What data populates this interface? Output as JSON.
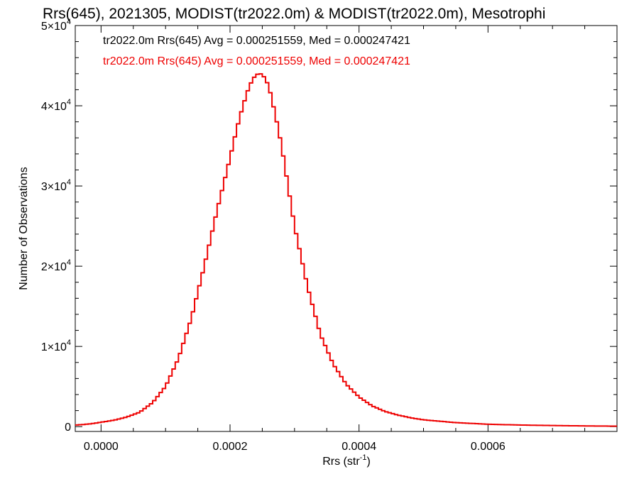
{
  "chart_data": {
    "type": "line",
    "style": "step-histogram",
    "title": "Rrs(645), 2021305, MODIST(tr2022.0m) & MODIST(tr2022.0m), Mesotrophi",
    "xlabel": "Rrs (str",
    "xlabel_sup": "-1",
    "xlabel_suffix": ")",
    "ylabel": "Number of Observations",
    "xlim": [
      -4e-05,
      0.0008
    ],
    "ylim": [
      -600,
      50000
    ],
    "x_ticks": [
      {
        "value": 0.0,
        "label": "0.0000"
      },
      {
        "value": 0.0002,
        "label": "0.0002"
      },
      {
        "value": 0.0004,
        "label": "0.0004"
      },
      {
        "value": 0.0006,
        "label": "0.0006"
      }
    ],
    "y_ticks": [
      {
        "value": 0,
        "mant": "0",
        "exp": ""
      },
      {
        "value": 10000,
        "mant": "1×10",
        "exp": "4"
      },
      {
        "value": 20000,
        "mant": "2×10",
        "exp": "4"
      },
      {
        "value": 30000,
        "mant": "3×10",
        "exp": "4"
      },
      {
        "value": 40000,
        "mant": "4×10",
        "exp": "4"
      },
      {
        "value": 50000,
        "mant": "5×10",
        "exp": "4"
      }
    ],
    "annotations": [
      {
        "text": "tr2022.0m Rrs(645) Avg = 0.000251559, Med = 0.000247421",
        "color": "#000000"
      },
      {
        "text": "tr2022.0m Rrs(645) Avg = 0.000251559, Med = 0.000247421",
        "color": "#ee0000"
      }
    ],
    "series": [
      {
        "color": "#ee0000",
        "bin_width": 5e-06,
        "x": [
          -4e-05,
          -3e-05,
          -2e-05,
          -1e-05,
          0.0,
          2e-05,
          4e-05,
          6e-05,
          8e-05,
          0.0001,
          0.00012,
          0.00014,
          0.00016,
          0.00018,
          0.0002,
          0.00021,
          0.00022,
          0.00023,
          0.00024,
          0.00025,
          0.00026,
          0.00027,
          0.00028,
          0.00029,
          0.0003,
          0.00032,
          0.00034,
          0.00036,
          0.00038,
          0.0004,
          0.00042,
          0.00044,
          0.00046,
          0.00048,
          0.0005,
          0.00055,
          0.0006,
          0.00065,
          0.0007,
          0.00075,
          0.0008
        ],
        "values": [
          200,
          250,
          320,
          420,
          550,
          800,
          1200,
          1800,
          3000,
          5000,
          8500,
          13500,
          20000,
          27000,
          33500,
          37000,
          40000,
          42500,
          43900,
          44000,
          42500,
          39000,
          35000,
          30000,
          25000,
          17500,
          11500,
          7800,
          5300,
          3700,
          2600,
          1900,
          1450,
          1100,
          850,
          500,
          300,
          200,
          140,
          90,
          60
        ]
      }
    ]
  }
}
